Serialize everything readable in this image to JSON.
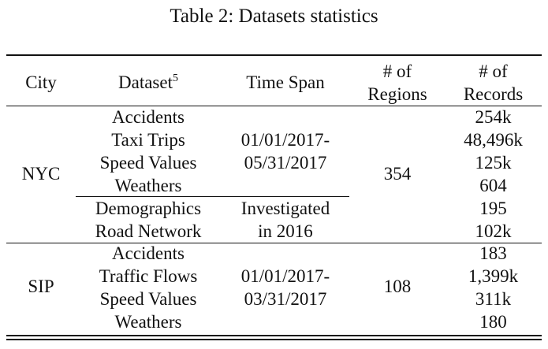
{
  "caption": "Table 2: Datasets statistics",
  "header": {
    "city": "City",
    "dataset": "Dataset",
    "dataset_footnote": "5",
    "time_span": "Time Span",
    "regions_line1": "# of",
    "regions_line2": "Regions",
    "records_line1": "# of",
    "records_line2": "Records"
  },
  "nyc": {
    "city": "NYC",
    "regions": "354",
    "group1": {
      "datasets": [
        "Accidents",
        "Taxi Trips",
        "Speed Values",
        "Weathers"
      ],
      "time_line1": "01/01/2017-",
      "time_line2": "05/31/2017",
      "records": [
        "254k",
        "48,496k",
        "125k",
        "604"
      ]
    },
    "group2": {
      "datasets": [
        "Demographics",
        "Road Network"
      ],
      "time_line1": "Investigated",
      "time_line2": "in 2016",
      "records": [
        "195",
        "102k"
      ]
    }
  },
  "sip": {
    "city": "SIP",
    "regions": "108",
    "datasets": [
      "Accidents",
      "Traffic Flows",
      "Speed Values",
      "Weathers"
    ],
    "time_line1": "01/01/2017-",
    "time_line2": "03/31/2017",
    "records": [
      "183",
      "1,399k",
      "311k",
      "180"
    ]
  }
}
